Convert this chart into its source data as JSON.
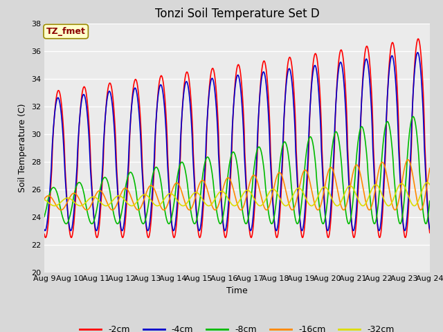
{
  "title": "Tonzi Soil Temperature Set D",
  "xlabel": "Time",
  "ylabel": "Soil Temperature (C)",
  "ylim": [
    20,
    38
  ],
  "annotation_text": "TZ_fmet",
  "annotation_color": "#8B0000",
  "annotation_bg": "#FFFFCC",
  "fig_bg": "#D8D8D8",
  "plot_bg": "#EBEBEB",
  "series": [
    {
      "label": "-2cm",
      "color": "#FF0000"
    },
    {
      "label": "-4cm",
      "color": "#0000CC"
    },
    {
      "label": "-8cm",
      "color": "#00BB00"
    },
    {
      "label": "-16cm",
      "color": "#FF8800"
    },
    {
      "label": "-32cm",
      "color": "#DDDD00"
    }
  ],
  "x_tick_labels": [
    "Aug 9",
    "Aug 10",
    "Aug 11",
    "Aug 12",
    "Aug 13",
    "Aug 14",
    "Aug 15",
    "Aug 16",
    "Aug 17",
    "Aug 18",
    "Aug 19",
    "Aug 20",
    "Aug 21",
    "Aug 22",
    "Aug 23",
    "Aug 24"
  ],
  "yticks": [
    20,
    22,
    24,
    26,
    28,
    30,
    32,
    34,
    36,
    38
  ],
  "grid_color": "#FFFFFF",
  "title_fontsize": 12,
  "axis_fontsize": 8,
  "legend_fontsize": 9
}
